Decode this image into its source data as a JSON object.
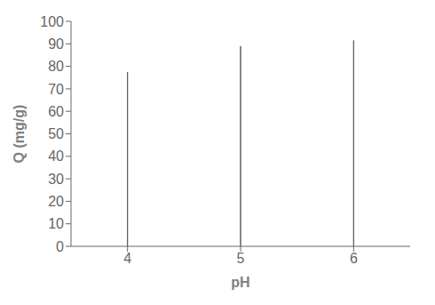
{
  "chart_data": {
    "type": "bar",
    "categories": [
      "4",
      "5",
      "6"
    ],
    "values": [
      77.5,
      89.0,
      91.5
    ],
    "colors": [
      "#eae6d7",
      "#add8e6",
      "#1e3a5f"
    ],
    "xlabel": "pH",
    "ylabel": "Q (mg/g)",
    "ylim": [
      0,
      100
    ],
    "yticks": [
      0,
      10,
      20,
      30,
      40,
      50,
      60,
      70,
      80,
      90,
      100
    ],
    "grid": false
  }
}
